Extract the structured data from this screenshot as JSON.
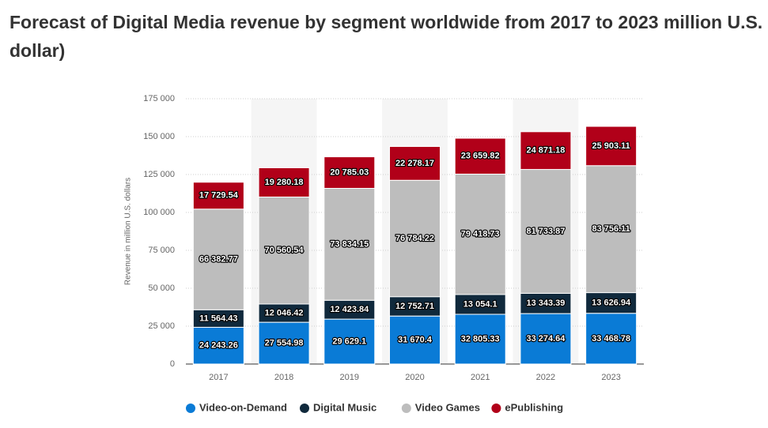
{
  "chart_data": {
    "type": "stacked-bar",
    "title": "Forecast of Digital Media revenue by segment worldwide from 2017 to 2023 million U.S. dollar)",
    "y_label": "Revenue in million U.S. dollars",
    "categories": [
      "2017",
      "2018",
      "2019",
      "2020",
      "2021",
      "2022",
      "2023"
    ],
    "series": [
      {
        "name": "Video-on-Demand",
        "color": "#0a7bd6",
        "values": [
          24243.26,
          27554.98,
          29629.1,
          31670.4,
          32805.33,
          33274.64,
          33468.78
        ],
        "value_labels": [
          "24 243.26",
          "27 554.98",
          "29 629.1",
          "31 670.4",
          "32 805.33",
          "33 274.64",
          "33 468.78"
        ]
      },
      {
        "name": "Digital Music",
        "color": "#10293c",
        "values": [
          11564.43,
          12046.42,
          12423.84,
          12752.71,
          13054.1,
          13343.39,
          13626.94
        ],
        "value_labels": [
          "11 564.43",
          "12 046.42",
          "12 423.84",
          "12 752.71",
          "13 054.1",
          "13 343.39",
          "13 626.94"
        ]
      },
      {
        "name": "Video Games",
        "color": "#bdbdbd",
        "values": [
          66382.77,
          70560.54,
          73834.15,
          76784.22,
          79418.73,
          81733.87,
          83756.11
        ],
        "value_labels": [
          "66 382.77",
          "70 560.54",
          "73 834.15",
          "76 784.22",
          "79 418.73",
          "81 733.87",
          "83 756.11"
        ]
      },
      {
        "name": "ePublishing",
        "color": "#b10019",
        "values": [
          17729.54,
          19280.18,
          20785.03,
          22278.17,
          23659.82,
          24871.18,
          25903.11
        ],
        "value_labels": [
          "17 729.54",
          "19 280.18",
          "20 785.03",
          "22 278.17",
          "23 659.82",
          "24 871.18",
          "25 903.11"
        ]
      }
    ],
    "ylim": [
      0,
      175000
    ],
    "yticks": [
      0,
      {
        "value": 25000,
        "label": "25 000"
      },
      {
        "value": 50000,
        "label": "50 000"
      },
      {
        "value": 75000,
        "label": "75 000"
      },
      {
        "value": 100000,
        "label": "100 000"
      },
      {
        "value": 125000,
        "label": "125 000"
      },
      {
        "value": 150000,
        "label": "150 000"
      },
      {
        "value": 175000,
        "label": "175 000"
      }
    ],
    "grid": true
  }
}
